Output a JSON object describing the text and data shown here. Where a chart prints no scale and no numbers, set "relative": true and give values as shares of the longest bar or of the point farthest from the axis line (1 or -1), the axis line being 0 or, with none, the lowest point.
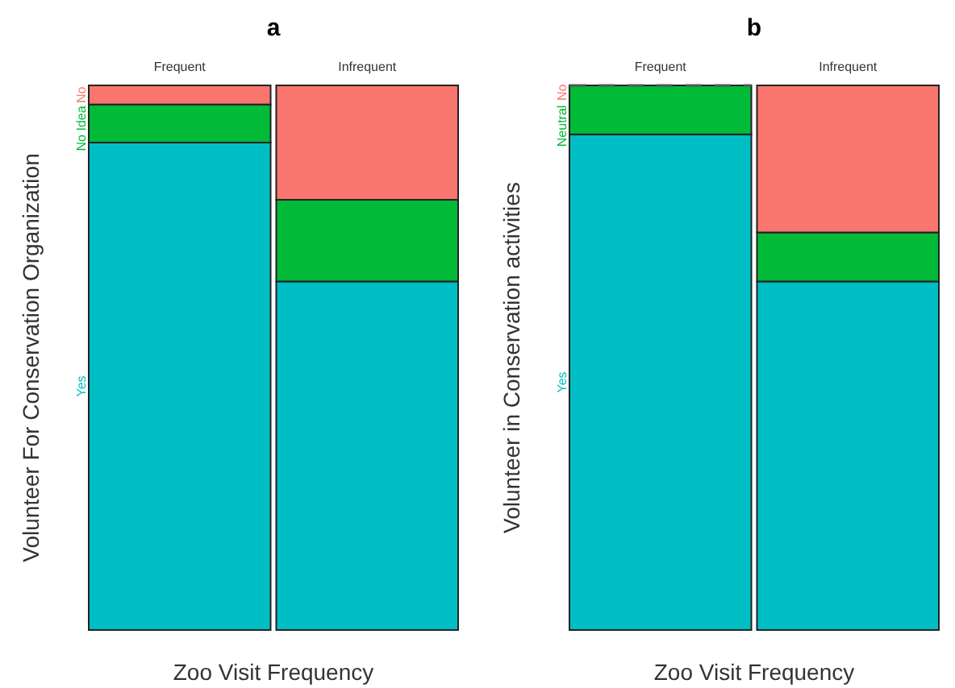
{
  "chart_data": [
    {
      "type": "bar",
      "title": "a",
      "xlabel": "Zoo Visit Frequency",
      "ylabel": "Volunteer For Conservation Organization",
      "categories": [
        "Frequent",
        "Infrequent"
      ],
      "stacked": true,
      "relative": true,
      "series": [
        {
          "name": "Yes",
          "color": "#00bfc4",
          "values": [
            0.895,
            0.64
          ]
        },
        {
          "name": "No Idea",
          "color": "#00ba38",
          "values": [
            0.07,
            0.15
          ]
        },
        {
          "name": "No",
          "color": "#f8766d",
          "values": [
            0.035,
            0.21
          ]
        }
      ]
    },
    {
      "type": "bar",
      "title": "b",
      "xlabel": "Zoo Visit Frequency",
      "ylabel": "Volunteer in Conservation activities",
      "categories": [
        "Frequent",
        "Infrequent"
      ],
      "stacked": true,
      "relative": true,
      "series": [
        {
          "name": "Yes",
          "color": "#00bfc4",
          "values": [
            0.91,
            0.64
          ]
        },
        {
          "name": "Neutral",
          "color": "#00ba38",
          "values": [
            0.09,
            0.09
          ]
        },
        {
          "name": "No",
          "color": "#f8766d",
          "values": [
            0,
            0.27
          ]
        }
      ]
    }
  ]
}
